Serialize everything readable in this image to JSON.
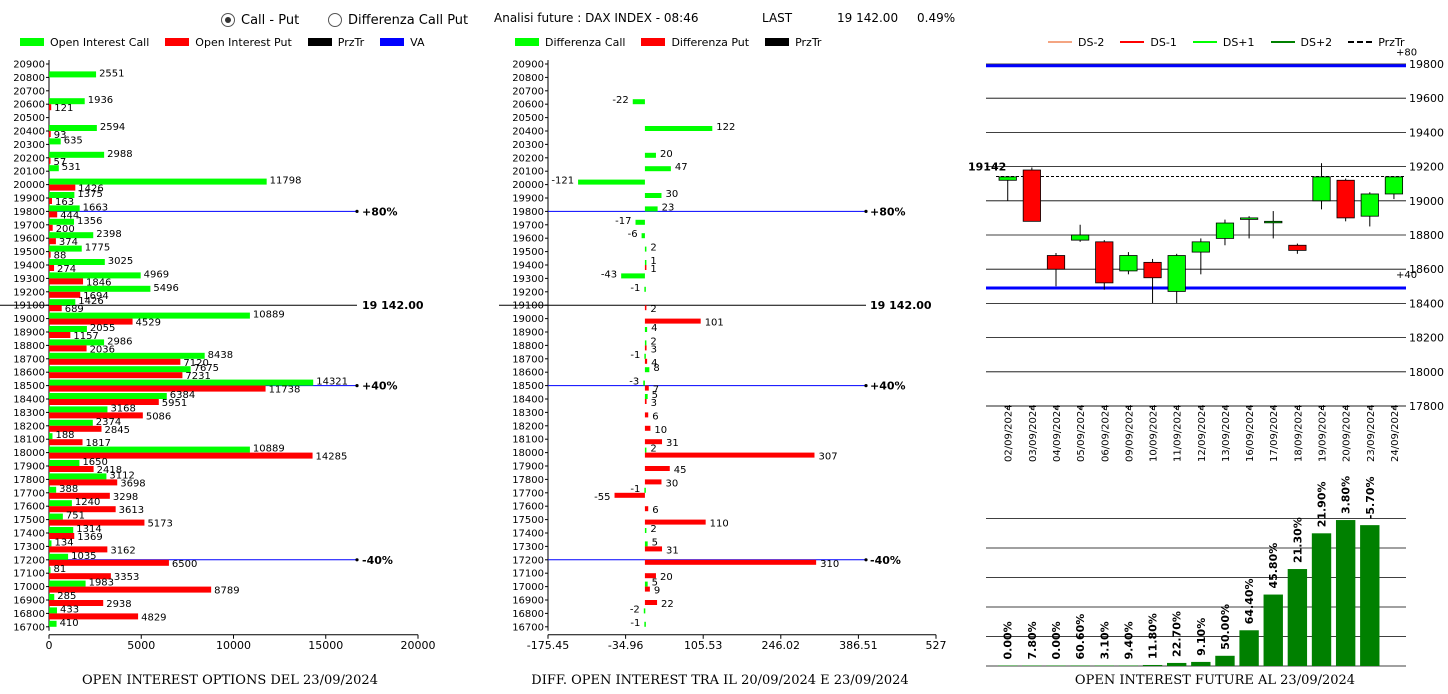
{
  "topbar": {
    "radio_call_put": "Call - Put",
    "radio_diff": "Differenza Call Put",
    "analysis_label": "Analisi future : DAX INDEX - 08:46",
    "last_label": "LAST",
    "last_value": "19 142.00",
    "change_value": "0.49%"
  },
  "panel1": {
    "legend": [
      {
        "label": "Open Interest Call",
        "color": "#00ff00"
      },
      {
        "label": "Open Interest Put",
        "color": "#ff0000"
      },
      {
        "label": "PrzTr",
        "color": "#000000"
      },
      {
        "label": "VA",
        "color": "#0000ff"
      }
    ],
    "caption": "OPEN INTEREST OPTIONS DEL 23/09/2024"
  },
  "panel2": {
    "legend": [
      {
        "label": "Differenza Call",
        "color": "#00ff00"
      },
      {
        "label": "Differenza Put",
        "color": "#ff0000"
      },
      {
        "label": "PrzTr",
        "color": "#000000"
      }
    ],
    "caption": "DIFF. OPEN INTEREST TRA IL 20/09/2024 E 23/09/2024"
  },
  "panel3": {
    "legend": [
      {
        "label": "DS-2",
        "color": "#f4a582"
      },
      {
        "label": "DS-1",
        "color": "#ff0000"
      },
      {
        "label": "DS+1",
        "color": "#00ff00"
      },
      {
        "label": "DS+2",
        "color": "#008000"
      },
      {
        "label": "PrzTr",
        "color": "#000000"
      }
    ],
    "caption": "OPEN INTEREST FUTURE AL 23/09/2024"
  },
  "chart_data": [
    {
      "type": "bar",
      "orientation": "horizontal",
      "strikes": [
        20900,
        20800,
        20700,
        20600,
        20500,
        20400,
        20300,
        20200,
        20100,
        20000,
        19900,
        19800,
        19700,
        19600,
        19500,
        19400,
        19300,
        19200,
        19100,
        19000,
        18900,
        18800,
        18700,
        18600,
        18500,
        18400,
        18300,
        18200,
        18100,
        18000,
        17900,
        17800,
        17700,
        17600,
        17500,
        17400,
        17300,
        17200,
        17100,
        17000,
        16900,
        16800,
        16700
      ],
      "series": [
        {
          "name": "Open Interest Call",
          "color": "#00ff00",
          "values": [
            null,
            2551,
            null,
            1936,
            null,
            2594,
            635,
            2988,
            531,
            11798,
            1375,
            1663,
            1356,
            2398,
            1775,
            3025,
            4969,
            5496,
            1426,
            10889,
            2055,
            2986,
            8438,
            7675,
            14321,
            6384,
            3168,
            2374,
            188,
            10889,
            1650,
            3112,
            388,
            1240,
            751,
            1314,
            134,
            1035,
            81,
            1983,
            285,
            433,
            410
          ]
        },
        {
          "name": "Open Interest Put",
          "color": "#ff0000",
          "values": [
            null,
            null,
            null,
            121,
            null,
            93,
            null,
            57,
            null,
            1426,
            163,
            444,
            200,
            374,
            88,
            274,
            1846,
            1694,
            689,
            4529,
            1157,
            2036,
            7120,
            7231,
            11738,
            5951,
            5086,
            2845,
            1817,
            14285,
            2418,
            3698,
            3298,
            3613,
            5173,
            1369,
            3162,
            6500,
            3353,
            8789,
            2938,
            4829,
            null
          ]
        }
      ],
      "reference_lines": [
        {
          "strike": 19800,
          "label": "+80%"
        },
        {
          "strike": 19100,
          "label": "19 142.00"
        },
        {
          "strike": 18500,
          "label": "+40%"
        },
        {
          "strike": 17200,
          "label": "-40%"
        }
      ],
      "x_ticks": [
        "0",
        "5000",
        "10000",
        "15000",
        "20000"
      ],
      "xlim": [
        0,
        20000
      ]
    },
    {
      "type": "bar",
      "orientation": "horizontal",
      "strikes": [
        20900,
        20800,
        20700,
        20600,
        20500,
        20400,
        20300,
        20200,
        20100,
        20000,
        19900,
        19800,
        19700,
        19600,
        19500,
        19400,
        19300,
        19200,
        19100,
        19000,
        18900,
        18800,
        18700,
        18600,
        18500,
        18400,
        18300,
        18200,
        18100,
        18000,
        17900,
        17800,
        17700,
        17600,
        17500,
        17400,
        17300,
        17200,
        17100,
        17000,
        16900,
        16800,
        16700
      ],
      "series": [
        {
          "name": "Differenza Call",
          "color": "#00ff00",
          "values": [
            null,
            null,
            null,
            -22,
            null,
            122,
            null,
            20,
            47,
            -121,
            30,
            23,
            -17,
            -6,
            2,
            1,
            -43,
            -1,
            null,
            null,
            4,
            2,
            -1,
            8,
            -3,
            5,
            null,
            null,
            null,
            2,
            null,
            null,
            -1,
            null,
            null,
            2,
            5,
            null,
            null,
            5,
            null,
            -2,
            -1
          ]
        },
        {
          "name": "Differenza Put",
          "color": "#ff0000",
          "values": [
            null,
            null,
            null,
            null,
            null,
            null,
            null,
            null,
            null,
            null,
            null,
            null,
            null,
            null,
            null,
            1,
            null,
            null,
            2,
            101,
            null,
            3,
            4,
            null,
            7,
            3,
            6,
            10,
            31,
            307,
            45,
            30,
            -55,
            6,
            110,
            null,
            31,
            310,
            20,
            9,
            22,
            null,
            null
          ]
        }
      ],
      "reference_lines": [
        {
          "strike": 19800,
          "label": "+80%"
        },
        {
          "strike": 19100,
          "label": "19 142.00"
        },
        {
          "strike": 18500,
          "label": "+40%"
        },
        {
          "strike": 17200,
          "label": "-40%"
        }
      ],
      "x_ticks": [
        "-175.45",
        "-34.96",
        "105.53",
        "246.02",
        "386.51",
        "527"
      ],
      "xlim": [
        -175.45,
        527
      ]
    },
    {
      "type": "candlestick",
      "dates": [
        "02/09/2024",
        "03/09/2024",
        "04/09/2024",
        "05/09/2024",
        "06/09/2024",
        "09/09/2024",
        "10/09/2024",
        "11/09/2024",
        "12/09/2024",
        "13/09/2024",
        "16/09/2024",
        "17/09/2024",
        "18/09/2024",
        "19/09/2024",
        "20/09/2024",
        "23/09/2024",
        "24/09/2024"
      ],
      "candles": [
        {
          "open": 19120,
          "close": 19140,
          "high": 19145,
          "low": 19000
        },
        {
          "open": 19180,
          "close": 18880,
          "high": 19195,
          "low": 18880
        },
        {
          "open": 18680,
          "close": 18600,
          "high": 18695,
          "low": 18500
        },
        {
          "open": 18770,
          "close": 18800,
          "high": 18860,
          "low": 18760
        },
        {
          "open": 18760,
          "close": 18520,
          "high": 18770,
          "low": 18480
        },
        {
          "open": 18590,
          "close": 18680,
          "high": 18700,
          "low": 18570
        },
        {
          "open": 18640,
          "close": 18550,
          "high": 18660,
          "low": 18400
        },
        {
          "open": 18470,
          "close": 18680,
          "high": 18690,
          "low": 18400
        },
        {
          "open": 18700,
          "close": 18760,
          "high": 18780,
          "low": 18570
        },
        {
          "open": 18780,
          "close": 18870,
          "high": 18890,
          "low": 18740
        },
        {
          "open": 18900,
          "close": 18900,
          "high": 18910,
          "low": 18780
        },
        {
          "open": 18880,
          "close": 18880,
          "high": 18940,
          "low": 18780
        },
        {
          "open": 18740,
          "close": 18710,
          "high": 18750,
          "low": 18690
        },
        {
          "open": 19000,
          "close": 19140,
          "high": 19220,
          "low": 18950
        },
        {
          "open": 19120,
          "close": 18900,
          "high": 19130,
          "low": 18880
        },
        {
          "open": 18910,
          "close": 19040,
          "high": 19050,
          "low": 18850
        },
        {
          "open": 19040,
          "close": 19140,
          "high": 19140,
          "low": 19010
        }
      ],
      "y_ticks": [
        19800,
        19600,
        19400,
        19200,
        19000,
        18800,
        18600,
        18400,
        18200,
        18000,
        17800
      ],
      "ylim": [
        17800,
        19800
      ],
      "blue_lines": [
        {
          "value": 19790,
          "label": "+80"
        },
        {
          "value": 18490,
          "label": "+40"
        }
      ],
      "last_price": 19142,
      "last_price_label": "19142"
    },
    {
      "type": "bar",
      "categories": [
        "02/09/2024",
        "03/09/2024",
        "04/09/2024",
        "05/09/2024",
        "06/09/2024",
        "09/09/2024",
        "10/09/2024",
        "11/09/2024",
        "12/09/2024",
        "13/09/2024",
        "16/09/2024",
        "17/09/2024",
        "18/09/2024",
        "19/09/2024",
        "20/09/2024",
        "23/09/2024",
        "24/09/2024"
      ],
      "values": [
        0,
        0,
        0,
        0.5,
        0.5,
        0.5,
        1,
        3,
        4,
        10,
        35,
        70,
        95,
        130,
        143,
        138,
        null
      ],
      "labels": [
        "0.00%",
        "7.80%",
        "0.00%",
        "60.60%",
        "3.10%",
        "9.40%",
        "11.80%",
        "22.70%",
        "9.10%",
        "50.00%",
        "64.40%",
        "45.80%",
        "21.30%",
        "21.90%",
        "3.80%",
        "-5.70%"
      ],
      "color": "#008000"
    }
  ]
}
